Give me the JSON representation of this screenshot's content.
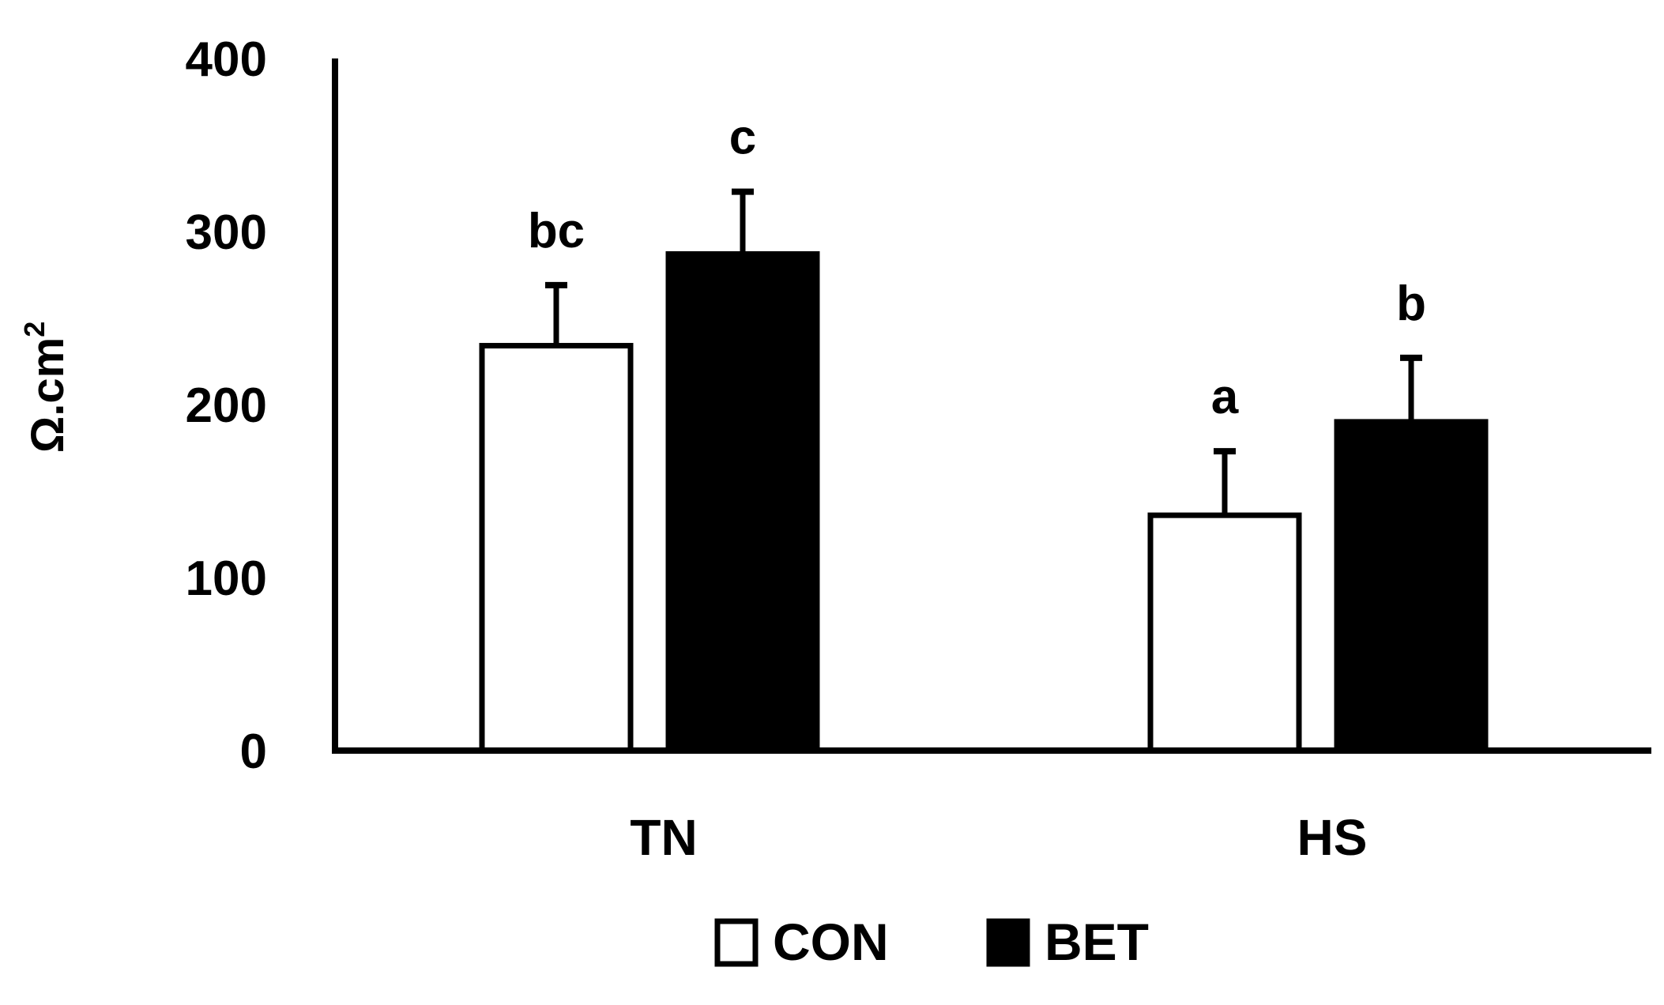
{
  "chart_data": {
    "type": "bar",
    "title": "",
    "xlabel": "",
    "ylabel": "Ω.cm",
    "ylabel_superscript": "2",
    "ylim": [
      0,
      400
    ],
    "yticks": [
      "0",
      "100",
      "200",
      "300",
      "400"
    ],
    "yticks_values": [
      0,
      100,
      200,
      300,
      400
    ],
    "categories": [
      "TN",
      "HS"
    ],
    "grid": false,
    "legend_position": "bottom",
    "series": [
      {
        "name": "CON",
        "fill": "#ffffff",
        "stroke": "#000000",
        "values": [
          234,
          136
        ],
        "errors": [
          35,
          37
        ],
        "significance": [
          "bc",
          "a"
        ]
      },
      {
        "name": "BET",
        "fill": "#000000",
        "stroke": "#000000",
        "values": [
          287,
          190
        ],
        "errors": [
          36,
          37
        ],
        "significance": [
          "c",
          "b"
        ]
      }
    ]
  }
}
